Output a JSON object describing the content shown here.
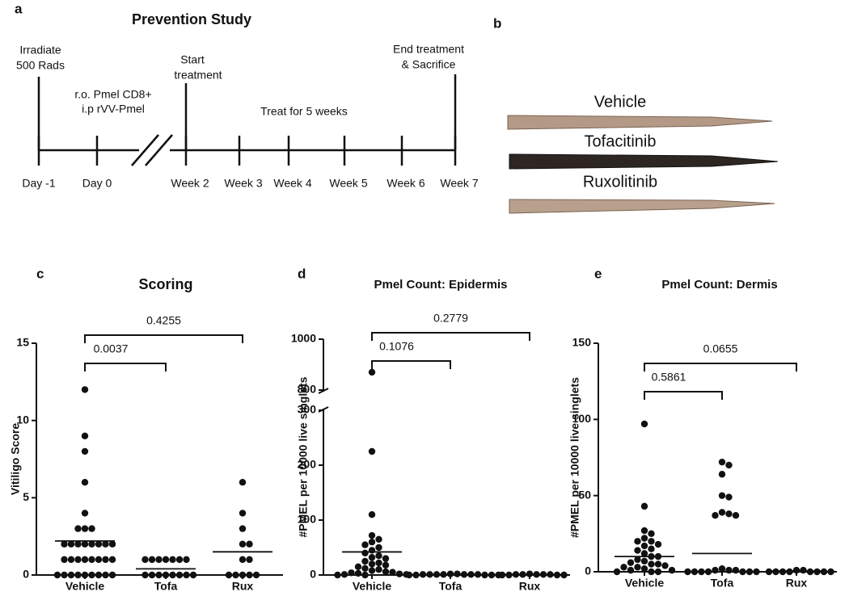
{
  "panel_a": {
    "label": "a",
    "title": "Prevention Study",
    "notes": [
      [
        "Irradiate",
        "500 Rads"
      ],
      [
        "r.o. Pmel CD8+",
        "i.p rVV-Pmel"
      ],
      [
        "Start",
        "treatment"
      ],
      [
        "Treat for 5 weeks"
      ],
      [
        "End treatment",
        "& Sacrifice"
      ]
    ],
    "timepoints": [
      "Day -1",
      "Day 0",
      "Week 2",
      "Week 3",
      "Week 4",
      "Week 5",
      "Week 6",
      "Week 7"
    ]
  },
  "panel_b": {
    "label": "b",
    "samples": [
      "Vehicle",
      "Tofacitinib",
      "Ruxolitinib"
    ]
  },
  "chart_data": [
    {
      "type": "dot",
      "panel": "c",
      "title": "Scoring",
      "y_label": "Vitiligo Score",
      "categories": [
        "Vehicle",
        "Tofa",
        "Rux"
      ],
      "values": [
        [
          12,
          9,
          8,
          6,
          4,
          3,
          3,
          3,
          2,
          2,
          2,
          2,
          2,
          2,
          2,
          2,
          1,
          1,
          1,
          1,
          1,
          1,
          1,
          1,
          0,
          0,
          0,
          0,
          0,
          0,
          0,
          0,
          0
        ],
        [
          1,
          1,
          1,
          1,
          1,
          1,
          1,
          0,
          0,
          0,
          0,
          0,
          0,
          0,
          0
        ],
        [
          6,
          4,
          3,
          2,
          2,
          1,
          1,
          0,
          0,
          0,
          0,
          0
        ]
      ],
      "means": [
        2.2,
        0.4,
        1.5
      ],
      "ylim": [
        0,
        15
      ],
      "yticks": [
        0,
        5,
        10,
        15
      ],
      "comparisons": [
        {
          "categories": [
            "Vehicle",
            "Tofa"
          ],
          "label": "0.0037"
        },
        {
          "categories": [
            "Vehicle",
            "Rux"
          ],
          "label": "0.4255"
        }
      ]
    },
    {
      "type": "dot",
      "panel": "d",
      "title": "Pmel Count:  Epidermis",
      "y_label": "#PMEL per 10000 live singlets",
      "categories": [
        "Vehicle",
        "Tofa",
        "Rux"
      ],
      "values": [
        [
          870,
          225,
          110,
          72,
          65,
          60,
          55,
          50,
          45,
          40,
          35,
          32,
          30,
          25,
          22,
          20,
          18,
          15,
          12,
          10,
          8,
          6,
          5,
          4,
          3,
          2,
          1,
          1,
          0,
          0
        ],
        [
          2,
          2,
          1,
          1,
          1,
          1,
          1,
          1,
          1,
          0,
          0,
          0,
          0,
          0
        ],
        [
          2,
          1,
          1,
          1,
          1,
          1,
          0,
          0,
          0,
          0
        ]
      ],
      "means": [
        42,
        1,
        1
      ],
      "ylim": [
        0,
        1000
      ],
      "axis_break": [
        300,
        800
      ],
      "yticks": [
        0,
        100,
        200,
        300,
        800,
        1000
      ],
      "comparisons": [
        {
          "categories": [
            "Vehicle",
            "Tofa"
          ],
          "label": "0.1076"
        },
        {
          "categories": [
            "Vehicle",
            "Rux"
          ],
          "label": "0.2779"
        }
      ]
    },
    {
      "type": "dot",
      "panel": "e",
      "title": "Pmel Count: Dermis",
      "y_label": "#PMEL per 10000 live singlets",
      "categories": [
        "Vehicle",
        "Tofa",
        "Rux"
      ],
      "values": [
        [
          97,
          43,
          27,
          25,
          22,
          20,
          20,
          18,
          17,
          15,
          14,
          12,
          10,
          10,
          8,
          7,
          6,
          5,
          5,
          4,
          3,
          3,
          2,
          1,
          1,
          0,
          0,
          0
        ],
        [
          72,
          70,
          64,
          50,
          49,
          39,
          38,
          37,
          37,
          2,
          1,
          1,
          1,
          0,
          0,
          0,
          0,
          0,
          0,
          0
        ],
        [
          1,
          1,
          0,
          0,
          0,
          0,
          0,
          0,
          0,
          0
        ]
      ],
      "means": [
        10,
        12,
        0.5
      ],
      "ylim": [
        0,
        150
      ],
      "yticks": [
        0,
        50,
        100,
        150
      ],
      "comparisons": [
        {
          "categories": [
            "Vehicle",
            "Tofa"
          ],
          "label": "0.5861"
        },
        {
          "categories": [
            "Vehicle",
            "Rux"
          ],
          "label": "0.0655"
        }
      ]
    }
  ]
}
